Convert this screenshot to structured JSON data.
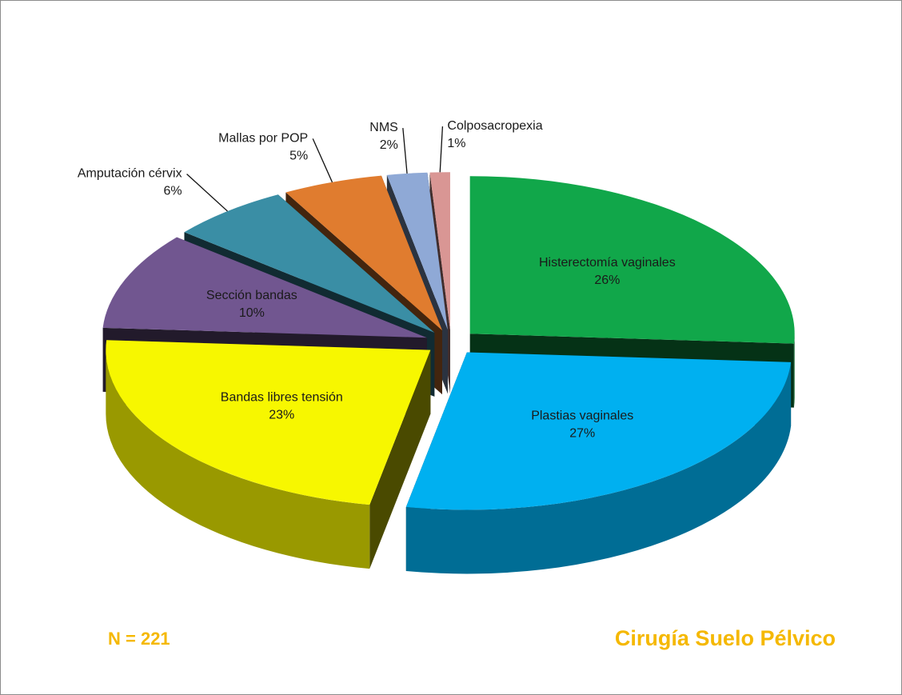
{
  "chart_data": {
    "type": "pie",
    "title": "Cirugía Suelo Pélvico",
    "annotation": "N = 221",
    "categories": [
      "Histerectomía vaginales",
      "Plastias vaginales",
      "Bandas libres tensión",
      "Sección bandas",
      "Amputación cérvix",
      "Mallas por POP",
      "NMS",
      "Colposacropexia"
    ],
    "values": [
      26,
      27,
      23,
      10,
      6,
      5,
      2,
      1
    ],
    "value_labels": [
      "26%",
      "27%",
      "23%",
      "10%",
      "6%",
      "5%",
      "2%",
      "1%"
    ],
    "colors": [
      "#11a74a",
      "#00b0f0",
      "#f7f700",
      "#715690",
      "#3a8ea5",
      "#e07c2f",
      "#8fa9d6",
      "#d99694"
    ]
  }
}
